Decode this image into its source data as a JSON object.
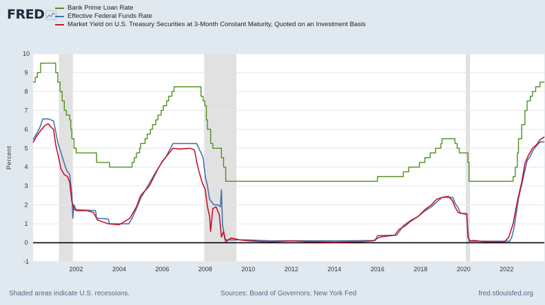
{
  "logo": {
    "text": "FRED",
    "icon": "fred-chart-icon"
  },
  "chart_data": {
    "type": "line",
    "ylabel": "Percent",
    "ylim": [
      -1,
      10
    ],
    "yticks": [
      -1,
      0,
      1,
      2,
      3,
      4,
      5,
      6,
      7,
      8,
      9,
      10
    ],
    "xlim": [
      2000.0,
      2023.75
    ],
    "xticks": [
      "2002",
      "2004",
      "2006",
      "2008",
      "2010",
      "2012",
      "2014",
      "2016",
      "2018",
      "2020",
      "2022"
    ],
    "grid": true,
    "legend_position": "top-left",
    "recessions": [
      [
        2001.2,
        2001.85
      ],
      [
        2007.95,
        2009.45
      ],
      [
        2020.1,
        2020.3
      ]
    ],
    "series": [
      {
        "name": "Bank Prime Loan Rate",
        "color": "#4d8f1c",
        "step": true,
        "points": [
          [
            2000.0,
            8.5
          ],
          [
            2000.1,
            8.75
          ],
          [
            2000.2,
            9.0
          ],
          [
            2000.35,
            9.5
          ],
          [
            2000.95,
            9.5
          ],
          [
            2001.05,
            9.0
          ],
          [
            2001.15,
            8.5
          ],
          [
            2001.25,
            8.0
          ],
          [
            2001.35,
            7.5
          ],
          [
            2001.45,
            7.0
          ],
          [
            2001.55,
            6.75
          ],
          [
            2001.7,
            6.5
          ],
          [
            2001.75,
            6.0
          ],
          [
            2001.8,
            5.5
          ],
          [
            2001.9,
            5.0
          ],
          [
            2002.0,
            4.75
          ],
          [
            2002.9,
            4.75
          ],
          [
            2002.95,
            4.25
          ],
          [
            2003.5,
            4.25
          ],
          [
            2003.55,
            4.0
          ],
          [
            2004.5,
            4.0
          ],
          [
            2004.6,
            4.25
          ],
          [
            2004.7,
            4.5
          ],
          [
            2004.8,
            4.75
          ],
          [
            2004.95,
            5.0
          ],
          [
            2005.0,
            5.25
          ],
          [
            2005.2,
            5.5
          ],
          [
            2005.3,
            5.75
          ],
          [
            2005.45,
            6.0
          ],
          [
            2005.55,
            6.25
          ],
          [
            2005.7,
            6.5
          ],
          [
            2005.8,
            6.75
          ],
          [
            2005.95,
            7.0
          ],
          [
            2006.05,
            7.25
          ],
          [
            2006.2,
            7.5
          ],
          [
            2006.3,
            7.75
          ],
          [
            2006.45,
            8.0
          ],
          [
            2006.55,
            8.25
          ],
          [
            2007.7,
            8.25
          ],
          [
            2007.8,
            7.75
          ],
          [
            2007.9,
            7.5
          ],
          [
            2007.98,
            7.25
          ],
          [
            2008.05,
            6.5
          ],
          [
            2008.1,
            6.0
          ],
          [
            2008.25,
            5.25
          ],
          [
            2008.35,
            5.0
          ],
          [
            2008.75,
            4.5
          ],
          [
            2008.85,
            4.0
          ],
          [
            2008.95,
            3.25
          ],
          [
            2015.95,
            3.25
          ],
          [
            2016.0,
            3.5
          ],
          [
            2016.95,
            3.5
          ],
          [
            2017.2,
            3.75
          ],
          [
            2017.45,
            4.0
          ],
          [
            2017.95,
            4.25
          ],
          [
            2018.2,
            4.5
          ],
          [
            2018.45,
            4.75
          ],
          [
            2018.7,
            5.0
          ],
          [
            2018.95,
            5.25
          ],
          [
            2019.0,
            5.5
          ],
          [
            2019.55,
            5.5
          ],
          [
            2019.6,
            5.25
          ],
          [
            2019.7,
            5.0
          ],
          [
            2019.8,
            4.75
          ],
          [
            2020.15,
            4.75
          ],
          [
            2020.2,
            4.25
          ],
          [
            2020.25,
            3.25
          ],
          [
            2022.2,
            3.25
          ],
          [
            2022.3,
            3.5
          ],
          [
            2022.4,
            4.0
          ],
          [
            2022.5,
            4.75
          ],
          [
            2022.55,
            5.5
          ],
          [
            2022.7,
            6.25
          ],
          [
            2022.85,
            7.0
          ],
          [
            2022.95,
            7.5
          ],
          [
            2023.1,
            7.75
          ],
          [
            2023.2,
            8.0
          ],
          [
            2023.35,
            8.25
          ],
          [
            2023.55,
            8.5
          ],
          [
            2023.75,
            8.5
          ]
        ]
      },
      {
        "name": "Effective Federal Funds Rate",
        "color": "#4572a7",
        "step": false,
        "points": [
          [
            2000.0,
            5.45
          ],
          [
            2000.15,
            5.75
          ],
          [
            2000.3,
            6.05
          ],
          [
            2000.45,
            6.55
          ],
          [
            2000.7,
            6.55
          ],
          [
            2000.95,
            6.45
          ],
          [
            2001.05,
            5.9
          ],
          [
            2001.15,
            5.3
          ],
          [
            2001.3,
            4.75
          ],
          [
            2001.45,
            4.2
          ],
          [
            2001.55,
            3.85
          ],
          [
            2001.7,
            3.6
          ],
          [
            2001.8,
            2.6
          ],
          [
            2001.85,
            1.3
          ],
          [
            2001.9,
            2.0
          ],
          [
            2002.0,
            1.75
          ],
          [
            2002.9,
            1.7
          ],
          [
            2002.95,
            1.3
          ],
          [
            2003.5,
            1.25
          ],
          [
            2003.55,
            1.0
          ],
          [
            2004.45,
            1.0
          ],
          [
            2004.6,
            1.3
          ],
          [
            2004.8,
            1.8
          ],
          [
            2005.0,
            2.35
          ],
          [
            2005.3,
            2.95
          ],
          [
            2005.6,
            3.55
          ],
          [
            2005.9,
            4.1
          ],
          [
            2006.2,
            4.6
          ],
          [
            2006.5,
            5.25
          ],
          [
            2007.6,
            5.25
          ],
          [
            2007.7,
            5.0
          ],
          [
            2007.8,
            4.75
          ],
          [
            2007.9,
            4.5
          ],
          [
            2008.0,
            3.5
          ],
          [
            2008.1,
            3.0
          ],
          [
            2008.2,
            2.3
          ],
          [
            2008.4,
            2.0
          ],
          [
            2008.6,
            2.0
          ],
          [
            2008.7,
            1.9
          ],
          [
            2008.75,
            2.8
          ],
          [
            2008.8,
            1.0
          ],
          [
            2008.9,
            0.2
          ],
          [
            2009.0,
            0.15
          ],
          [
            2010.0,
            0.15
          ],
          [
            2011.0,
            0.1
          ],
          [
            2014.5,
            0.1
          ],
          [
            2015.9,
            0.12
          ],
          [
            2016.0,
            0.38
          ],
          [
            2016.9,
            0.4
          ],
          [
            2017.2,
            0.9
          ],
          [
            2017.5,
            1.15
          ],
          [
            2017.9,
            1.4
          ],
          [
            2018.2,
            1.68
          ],
          [
            2018.5,
            1.9
          ],
          [
            2018.8,
            2.2
          ],
          [
            2019.0,
            2.4
          ],
          [
            2019.5,
            2.4
          ],
          [
            2019.6,
            2.1
          ],
          [
            2019.75,
            1.85
          ],
          [
            2019.85,
            1.55
          ],
          [
            2020.15,
            1.55
          ],
          [
            2020.2,
            0.65
          ],
          [
            2020.25,
            0.08
          ],
          [
            2021.0,
            0.08
          ],
          [
            2022.15,
            0.08
          ],
          [
            2022.25,
            0.33
          ],
          [
            2022.35,
            0.83
          ],
          [
            2022.45,
            1.58
          ],
          [
            2022.55,
            2.33
          ],
          [
            2022.7,
            3.08
          ],
          [
            2022.85,
            3.83
          ],
          [
            2022.95,
            4.33
          ],
          [
            2023.1,
            4.58
          ],
          [
            2023.2,
            4.83
          ],
          [
            2023.35,
            5.08
          ],
          [
            2023.55,
            5.33
          ],
          [
            2023.75,
            5.33
          ]
        ]
      },
      {
        "name": "Market Yield on U.S. Treasury Securities at 3-Month Constant Maturity, Quoted on an Investment Basis",
        "color": "#c8102e",
        "step": false,
        "points": [
          [
            2000.0,
            5.3
          ],
          [
            2000.2,
            5.7
          ],
          [
            2000.4,
            6.0
          ],
          [
            2000.55,
            6.2
          ],
          [
            2000.7,
            6.3
          ],
          [
            2000.85,
            6.1
          ],
          [
            2000.95,
            6.0
          ],
          [
            2001.05,
            5.2
          ],
          [
            2001.15,
            4.7
          ],
          [
            2001.3,
            3.9
          ],
          [
            2001.45,
            3.6
          ],
          [
            2001.6,
            3.5
          ],
          [
            2001.7,
            3.2
          ],
          [
            2001.8,
            2.2
          ],
          [
            2001.9,
            1.8
          ],
          [
            2002.0,
            1.7
          ],
          [
            2002.5,
            1.7
          ],
          [
            2002.8,
            1.6
          ],
          [
            2003.0,
            1.2
          ],
          [
            2003.5,
            1.0
          ],
          [
            2004.0,
            0.95
          ],
          [
            2004.5,
            1.3
          ],
          [
            2004.8,
            1.9
          ],
          [
            2005.0,
            2.5
          ],
          [
            2005.4,
            3.0
          ],
          [
            2005.8,
            3.9
          ],
          [
            2006.0,
            4.3
          ],
          [
            2006.5,
            5.0
          ],
          [
            2006.8,
            4.95
          ],
          [
            2007.3,
            5.0
          ],
          [
            2007.5,
            4.9
          ],
          [
            2007.6,
            4.3
          ],
          [
            2007.7,
            3.8
          ],
          [
            2007.85,
            3.2
          ],
          [
            2008.0,
            2.8
          ],
          [
            2008.1,
            1.9
          ],
          [
            2008.2,
            1.4
          ],
          [
            2008.25,
            0.6
          ],
          [
            2008.35,
            1.8
          ],
          [
            2008.5,
            1.9
          ],
          [
            2008.65,
            1.5
          ],
          [
            2008.75,
            0.3
          ],
          [
            2008.85,
            0.6
          ],
          [
            2008.95,
            0.05
          ],
          [
            2009.2,
            0.25
          ],
          [
            2009.6,
            0.15
          ],
          [
            2010.0,
            0.1
          ],
          [
            2011.0,
            0.05
          ],
          [
            2012.0,
            0.1
          ],
          [
            2013.0,
            0.05
          ],
          [
            2014.0,
            0.03
          ],
          [
            2015.0,
            0.05
          ],
          [
            2015.8,
            0.1
          ],
          [
            2016.1,
            0.3
          ],
          [
            2016.8,
            0.4
          ],
          [
            2017.0,
            0.7
          ],
          [
            2017.3,
            0.9
          ],
          [
            2017.5,
            1.1
          ],
          [
            2017.9,
            1.4
          ],
          [
            2018.2,
            1.75
          ],
          [
            2018.5,
            2.0
          ],
          [
            2018.75,
            2.3
          ],
          [
            2019.0,
            2.4
          ],
          [
            2019.3,
            2.45
          ],
          [
            2019.5,
            2.2
          ],
          [
            2019.6,
            1.9
          ],
          [
            2019.75,
            1.6
          ],
          [
            2020.15,
            1.5
          ],
          [
            2020.2,
            0.3
          ],
          [
            2020.3,
            0.1
          ],
          [
            2020.5,
            0.12
          ],
          [
            2021.0,
            0.05
          ],
          [
            2021.9,
            0.05
          ],
          [
            2022.1,
            0.3
          ],
          [
            2022.3,
            1.0
          ],
          [
            2022.5,
            2.2
          ],
          [
            2022.7,
            3.2
          ],
          [
            2022.85,
            4.2
          ],
          [
            2023.0,
            4.6
          ],
          [
            2023.2,
            5.0
          ],
          [
            2023.4,
            5.2
          ],
          [
            2023.55,
            5.45
          ],
          [
            2023.75,
            5.6
          ]
        ]
      }
    ]
  },
  "footer": {
    "note": "Shaded areas indicate U.S. recessions.",
    "source": "Sources: Board of Governors; New York Fed",
    "site": "fred.stlouisfed.org"
  }
}
